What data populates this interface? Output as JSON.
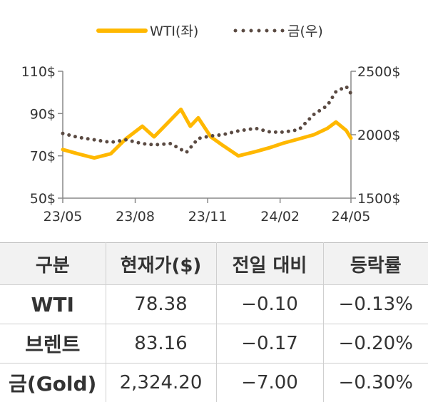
{
  "chart_data": {
    "type": "line",
    "legend_position": "top-center",
    "x_ticks": [
      "23/05",
      "23/08",
      "23/11",
      "24/02",
      "24/05"
    ],
    "y_left": {
      "ticks": [
        "50$",
        "70$",
        "90$",
        "110$"
      ],
      "range": [
        50,
        110
      ]
    },
    "y_right": {
      "ticks": [
        "1500$",
        "2000$",
        "2500$"
      ],
      "range": [
        1500,
        2500
      ]
    },
    "series": [
      {
        "name": "WTI(좌)",
        "axis": "left",
        "style": "solid",
        "color": "#FFB800",
        "x": [
          "2023-05-01",
          "2023-05-20",
          "2023-06-10",
          "2023-07-01",
          "2023-07-20",
          "2023-08-10",
          "2023-08-25",
          "2023-09-15",
          "2023-09-28",
          "2023-10-10",
          "2023-10-20",
          "2023-11-05",
          "2023-11-20",
          "2023-12-10",
          "2024-01-01",
          "2024-01-20",
          "2024-02-05",
          "2024-02-25",
          "2024-03-15",
          "2024-04-01",
          "2024-04-12",
          "2024-04-25",
          "2024-05-01"
        ],
        "values": [
          73,
          71,
          69,
          71,
          78,
          84,
          79,
          87,
          92,
          84,
          88,
          79,
          75,
          70,
          72,
          74,
          76,
          78,
          80,
          83,
          86,
          82,
          78.38
        ]
      },
      {
        "name": "금(우)",
        "axis": "right",
        "style": "dotted",
        "color": "#5a4a42",
        "x": [
          "2023-05-01",
          "2023-05-20",
          "2023-06-10",
          "2023-07-01",
          "2023-07-20",
          "2023-08-10",
          "2023-08-25",
          "2023-09-15",
          "2023-10-05",
          "2023-10-20",
          "2023-11-05",
          "2023-11-20",
          "2023-12-10",
          "2024-01-01",
          "2024-01-20",
          "2024-02-05",
          "2024-02-25",
          "2024-03-15",
          "2024-04-01",
          "2024-04-12",
          "2024-04-25",
          "2024-05-01"
        ],
        "values": [
          2010,
          1980,
          1960,
          1940,
          1960,
          1930,
          1920,
          1930,
          1860,
          1970,
          1990,
          2000,
          2030,
          2050,
          2020,
          2020,
          2040,
          2160,
          2230,
          2340,
          2380,
          2324.2
        ]
      }
    ]
  },
  "table": {
    "headers": [
      "구분",
      "현재가($)",
      "전일 대비",
      "등락률"
    ],
    "rows": [
      [
        "WTI",
        "78.38",
        "−0.10",
        "−0.13%"
      ],
      [
        "브렌트",
        "83.16",
        "−0.17",
        "−0.20%"
      ],
      [
        "금(Gold)",
        "2,324.20",
        "−7.00",
        "−0.30%"
      ]
    ]
  }
}
